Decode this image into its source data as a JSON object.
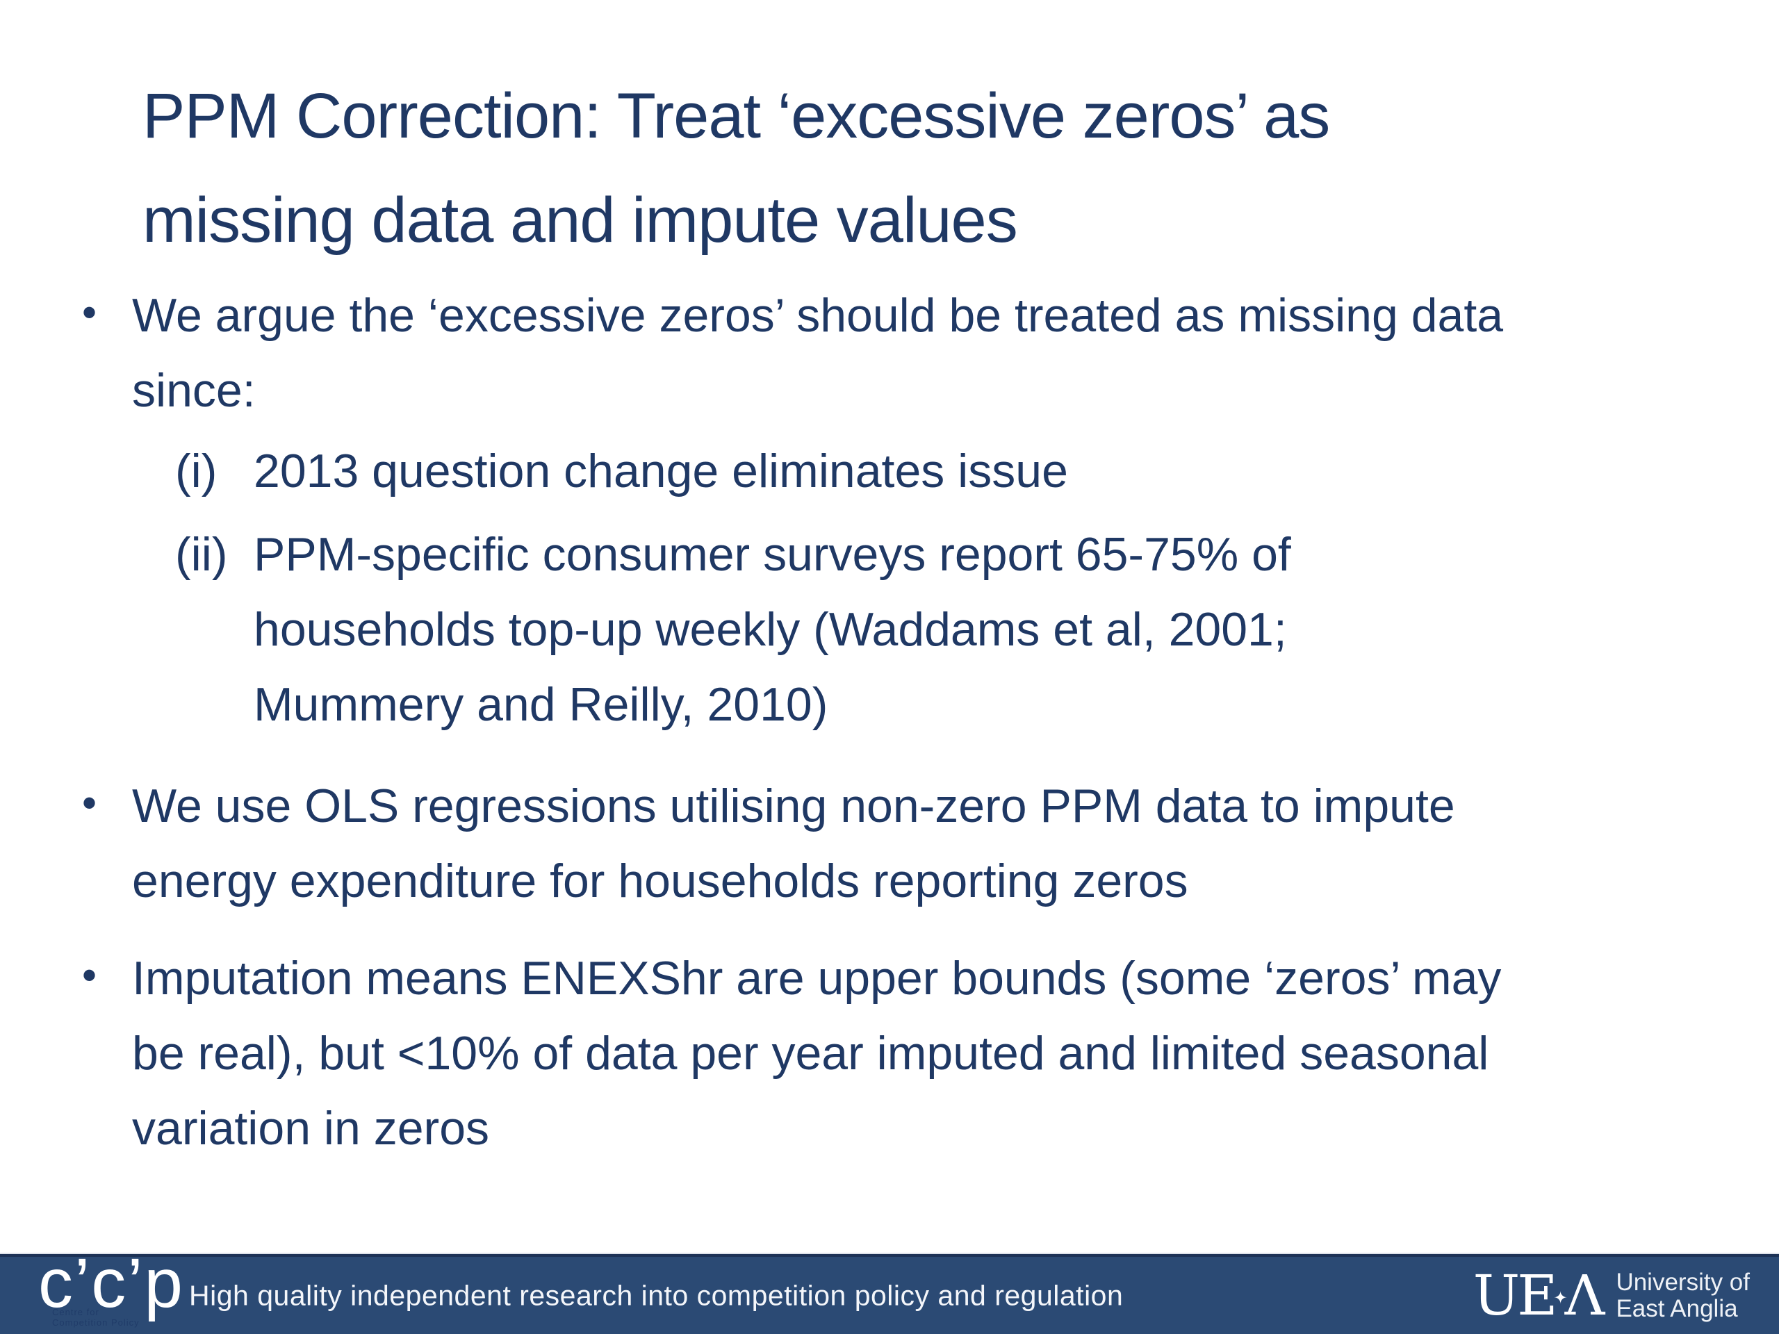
{
  "colors": {
    "navy": "#1f3864",
    "footer_bg": "#2b4a74",
    "white": "#ffffff"
  },
  "title": {
    "lines": [
      "PPM Correction: Treat ‘excessive zeros’ as",
      "missing data and impute values"
    ]
  },
  "bullets": [
    {
      "marker": "•",
      "lines": [
        "We argue the ‘excessive zeros’ should be treated as missing data",
        "since:"
      ],
      "sub": [
        {
          "marker": "(i)",
          "lines": [
            "2013 question change eliminates issue"
          ]
        },
        {
          "marker": "(ii)",
          "lines": [
            "PPM-specific consumer surveys report 65-75% of",
            "households top-up weekly (Waddams et al, 2001;",
            "Mummery and Reilly, 2010)"
          ]
        }
      ]
    },
    {
      "marker": "•",
      "lines": [
        "We use OLS regressions utilising non-zero PPM data to impute",
        "energy expenditure for households reporting zeros"
      ]
    },
    {
      "marker": "•",
      "lines": [
        "Imputation means ENEXShr are upper bounds (some ‘zeros’ may",
        "be real), but <10% of data per year imputed and limited seasonal",
        "variation in zeros"
      ]
    }
  ],
  "footer": {
    "ccp_logo_display": "c’c’p",
    "ccp_subtext": [
      "Centre for",
      "Competition Policy"
    ],
    "tagline": "High quality independent research into competition policy and regulation",
    "uea": {
      "mark_left": "UE",
      "diamond": "✦",
      "mark_right": "Λ",
      "name_line1": "University of",
      "name_line2": "East Anglia"
    }
  }
}
